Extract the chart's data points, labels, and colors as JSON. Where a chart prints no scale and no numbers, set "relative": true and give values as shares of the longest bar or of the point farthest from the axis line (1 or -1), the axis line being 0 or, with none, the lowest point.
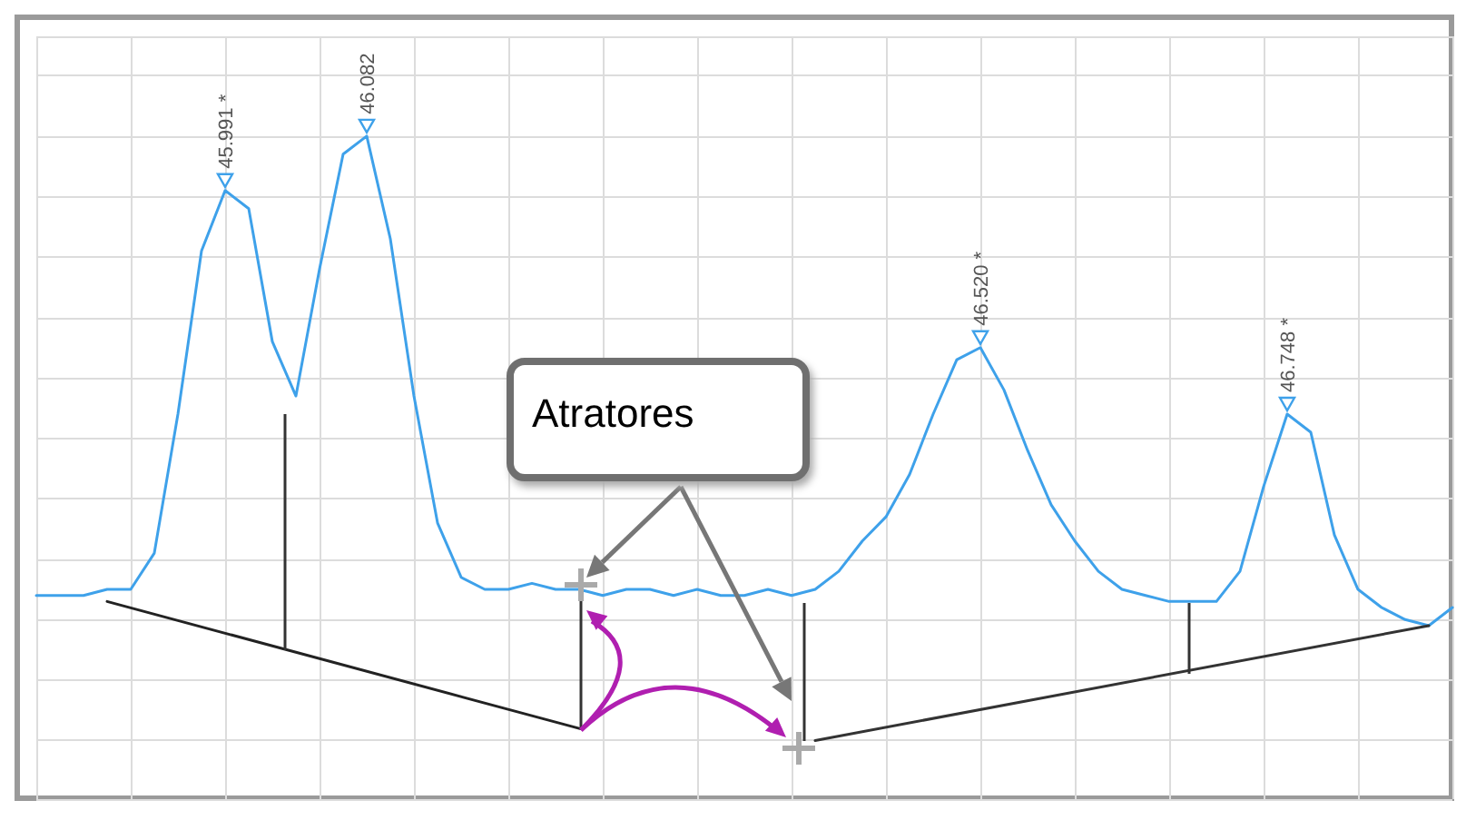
{
  "chart_data": {
    "type": "line",
    "relative": true,
    "grid": true,
    "categories": [
      null,
      null,
      null,
      null,
      null,
      null,
      null,
      null,
      null,
      null,
      null,
      null,
      null,
      null,
      null,
      null,
      null,
      null,
      null,
      null,
      null,
      null,
      null,
      null,
      null,
      null,
      null,
      null,
      null,
      null,
      null,
      null,
      null,
      null,
      null,
      null,
      null,
      null,
      null,
      null,
      null,
      null,
      null,
      null,
      null,
      null,
      null,
      null,
      null,
      null,
      null,
      null,
      null,
      null,
      null,
      null,
      null,
      null,
      null,
      null,
      null
    ],
    "series": [
      {
        "color": "#3ea1ea",
        "values": [
          0.24,
          0.24,
          0.24,
          0.25,
          0.25,
          0.31,
          0.54,
          0.81,
          0.91,
          0.88,
          0.66,
          0.57,
          0.78,
          0.97,
          1,
          0.83,
          0.57,
          0.36,
          0.27,
          0.25,
          0.25,
          0.26,
          0.25,
          0.25,
          0.24,
          0.25,
          0.25,
          0.24,
          0.25,
          0.24,
          0.24,
          0.25,
          0.24,
          0.25,
          0.28,
          0.33,
          0.37,
          0.44,
          0.54,
          0.63,
          0.65,
          0.58,
          0.48,
          0.39,
          0.33,
          0.28,
          0.25,
          0.24,
          0.23,
          0.23,
          0.23,
          0.28,
          0.42,
          0.54,
          0.51,
          0.34,
          0.25,
          0.22,
          0.2,
          0.19,
          0.22
        ]
      },
      {
        "color": "#222222",
        "values": [
          null,
          null,
          null,
          0.23,
          null,
          null,
          null,
          null,
          null,
          null,
          null,
          null,
          null,
          null,
          null,
          null,
          null,
          null,
          null,
          null,
          null,
          null,
          null,
          0.02,
          null,
          null,
          null,
          null,
          null,
          null,
          null,
          null,
          null,
          null,
          null,
          null,
          null,
          null,
          null,
          null,
          null,
          null,
          null,
          null,
          null,
          null,
          null,
          null,
          null,
          null,
          null,
          null,
          null,
          null,
          null,
          null,
          null,
          null,
          null,
          null,
          null
        ]
      },
      {
        "color": "#333333",
        "values": [
          null,
          null,
          null,
          null,
          null,
          null,
          null,
          null,
          null,
          null,
          null,
          null,
          null,
          null,
          null,
          null,
          null,
          null,
          null,
          null,
          null,
          null,
          null,
          null,
          null,
          null,
          null,
          null,
          null,
          null,
          null,
          null,
          null,
          0,
          null,
          null,
          null,
          null,
          null,
          null,
          null,
          null,
          null,
          null,
          null,
          null,
          null,
          null,
          null,
          null,
          null,
          null,
          null,
          null,
          null,
          null,
          null,
          null,
          null,
          0.19,
          null
        ]
      }
    ],
    "annotations": [
      "45.991 *",
      "46.082",
      "46.520 *",
      "46.748 *",
      "Atratores"
    ]
  }
}
